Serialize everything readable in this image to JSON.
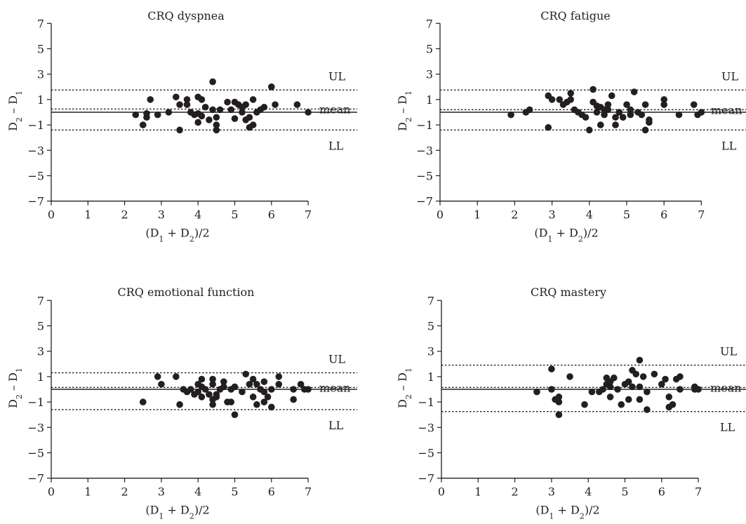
{
  "chart_data": [
    {
      "type": "scatter",
      "title": "CRQ dyspnea",
      "xlabel": "(D1 + D2)/2",
      "ylabel": "D2 – D1",
      "xlim": [
        0,
        7
      ],
      "ylim": [
        -7,
        7
      ],
      "xticks": [
        0,
        1,
        2,
        3,
        4,
        5,
        6,
        7
      ],
      "yticks": [
        -7,
        -5,
        -3,
        -1,
        1,
        3,
        5,
        7
      ],
      "reference_lines": [
        {
          "name": "UL",
          "y": 1.75,
          "style": "dotted"
        },
        {
          "name": "mean",
          "y": 0.25,
          "style": "dotted"
        },
        {
          "name": "mean",
          "y": 0.0,
          "style": "solid",
          "show_label": false
        },
        {
          "name": "LL",
          "y": -1.4,
          "style": "dotted"
        }
      ],
      "points": [
        [
          2.3,
          -0.2
        ],
        [
          2.5,
          -1.0
        ],
        [
          2.6,
          -0.1
        ],
        [
          2.6,
          -0.4
        ],
        [
          2.7,
          1.0
        ],
        [
          2.9,
          -0.2
        ],
        [
          3.2,
          0.0
        ],
        [
          3.4,
          1.2
        ],
        [
          3.5,
          0.6
        ],
        [
          3.5,
          -1.4
        ],
        [
          3.7,
          1.0
        ],
        [
          3.7,
          0.6
        ],
        [
          3.8,
          0.0
        ],
        [
          3.9,
          -0.2
        ],
        [
          4.0,
          1.2
        ],
        [
          4.0,
          -0.1
        ],
        [
          4.0,
          -0.8
        ],
        [
          4.1,
          1.0
        ],
        [
          4.1,
          -0.3
        ],
        [
          4.2,
          0.4
        ],
        [
          4.3,
          -0.6
        ],
        [
          4.4,
          2.4
        ],
        [
          4.4,
          0.2
        ],
        [
          4.5,
          -1.0
        ],
        [
          4.5,
          -1.4
        ],
        [
          4.5,
          -0.4
        ],
        [
          4.6,
          0.2
        ],
        [
          4.8,
          0.8
        ],
        [
          4.9,
          0.2
        ],
        [
          5.0,
          0.8
        ],
        [
          5.0,
          -0.5
        ],
        [
          5.1,
          0.6
        ],
        [
          5.2,
          0.4
        ],
        [
          5.2,
          0.0
        ],
        [
          5.3,
          0.6
        ],
        [
          5.3,
          -0.6
        ],
        [
          5.4,
          -1.2
        ],
        [
          5.4,
          -0.4
        ],
        [
          5.5,
          1.0
        ],
        [
          5.5,
          -1.0
        ],
        [
          5.6,
          0.0
        ],
        [
          5.7,
          0.2
        ],
        [
          5.8,
          0.4
        ],
        [
          6.0,
          2.0
        ],
        [
          6.1,
          0.6
        ],
        [
          6.7,
          0.6
        ],
        [
          7.0,
          0.0
        ]
      ]
    },
    {
      "type": "scatter",
      "title": "CRQ fatigue",
      "xlabel": "(D1 + D2)/2",
      "ylabel": "D2 – D1",
      "xlim": [
        0,
        7
      ],
      "ylim": [
        -7,
        7
      ],
      "xticks": [
        0,
        1,
        2,
        3,
        4,
        5,
        6,
        7
      ],
      "yticks": [
        -7,
        -5,
        -3,
        -1,
        1,
        3,
        5,
        7
      ],
      "reference_lines": [
        {
          "name": "UL",
          "y": 1.75,
          "style": "dotted"
        },
        {
          "name": "mean",
          "y": 0.2,
          "style": "dotted"
        },
        {
          "name": "mean",
          "y": 0.0,
          "style": "solid",
          "show_label": false
        },
        {
          "name": "LL",
          "y": -1.4,
          "style": "dotted"
        }
      ],
      "points": [
        [
          1.9,
          -0.2
        ],
        [
          2.3,
          0.0
        ],
        [
          2.4,
          0.2
        ],
        [
          2.9,
          1.3
        ],
        [
          2.9,
          -1.2
        ],
        [
          3.0,
          1.0
        ],
        [
          3.2,
          1.0
        ],
        [
          3.3,
          0.6
        ],
        [
          3.4,
          0.8
        ],
        [
          3.5,
          1.0
        ],
        [
          3.5,
          1.5
        ],
        [
          3.6,
          0.2
        ],
        [
          3.7,
          0.0
        ],
        [
          3.8,
          -0.2
        ],
        [
          3.9,
          -0.4
        ],
        [
          4.0,
          -1.4
        ],
        [
          4.1,
          1.8
        ],
        [
          4.1,
          0.8
        ],
        [
          4.2,
          0.5
        ],
        [
          4.2,
          0.0
        ],
        [
          4.3,
          -1.0
        ],
        [
          4.3,
          0.4
        ],
        [
          4.4,
          0.2
        ],
        [
          4.4,
          -0.2
        ],
        [
          4.5,
          0.6
        ],
        [
          4.5,
          0.2
        ],
        [
          4.6,
          1.3
        ],
        [
          4.7,
          -0.4
        ],
        [
          4.7,
          -1.0
        ],
        [
          4.8,
          0.0
        ],
        [
          4.9,
          -0.4
        ],
        [
          5.0,
          0.6
        ],
        [
          5.1,
          -0.2
        ],
        [
          5.1,
          0.2
        ],
        [
          5.2,
          1.6
        ],
        [
          5.3,
          0.0
        ],
        [
          5.4,
          -0.2
        ],
        [
          5.5,
          0.6
        ],
        [
          5.5,
          -1.4
        ],
        [
          5.6,
          -0.8
        ],
        [
          5.6,
          -0.6
        ],
        [
          6.0,
          1.0
        ],
        [
          6.0,
          0.6
        ],
        [
          6.4,
          -0.2
        ],
        [
          6.8,
          0.6
        ],
        [
          6.9,
          -0.2
        ],
        [
          7.0,
          0.0
        ]
      ]
    },
    {
      "type": "scatter",
      "title": "CRQ emotional function",
      "xlabel": "(D1 + D2)/2",
      "ylabel": "D2 – D1",
      "xlim": [
        0,
        7
      ],
      "ylim": [
        -7,
        7
      ],
      "xticks": [
        0,
        1,
        2,
        3,
        4,
        5,
        6,
        7
      ],
      "yticks": [
        -7,
        -5,
        -3,
        -1,
        1,
        3,
        5,
        7
      ],
      "reference_lines": [
        {
          "name": "UL",
          "y": 1.3,
          "style": "dotted"
        },
        {
          "name": "mean",
          "y": 0.15,
          "style": "dotted"
        },
        {
          "name": "mean",
          "y": 0.0,
          "style": "solid",
          "show_label": false
        },
        {
          "name": "LL",
          "y": -1.6,
          "style": "dotted"
        }
      ],
      "points": [
        [
          2.5,
          -1.0
        ],
        [
          2.9,
          1.0
        ],
        [
          3.0,
          0.4
        ],
        [
          3.4,
          1.0
        ],
        [
          3.5,
          -1.2
        ],
        [
          3.6,
          0.0
        ],
        [
          3.7,
          -0.2
        ],
        [
          3.8,
          0.0
        ],
        [
          3.9,
          -0.4
        ],
        [
          4.0,
          0.4
        ],
        [
          4.0,
          -0.2
        ],
        [
          4.1,
          0.2
        ],
        [
          4.1,
          0.8
        ],
        [
          4.1,
          -0.6
        ],
        [
          4.2,
          0.0
        ],
        [
          4.3,
          -0.4
        ],
        [
          4.4,
          -0.8
        ],
        [
          4.4,
          0.4
        ],
        [
          4.4,
          -1.2
        ],
        [
          4.4,
          0.8
        ],
        [
          4.5,
          -0.4
        ],
        [
          4.5,
          -0.6
        ],
        [
          4.6,
          0.0
        ],
        [
          4.7,
          0.6
        ],
        [
          4.7,
          0.2
        ],
        [
          4.8,
          -1.0
        ],
        [
          4.9,
          0.0
        ],
        [
          4.9,
          -1.0
        ],
        [
          5.0,
          -2.0
        ],
        [
          5.0,
          0.2
        ],
        [
          5.2,
          -0.2
        ],
        [
          5.3,
          1.2
        ],
        [
          5.4,
          0.4
        ],
        [
          5.5,
          0.8
        ],
        [
          5.5,
          -0.6
        ],
        [
          5.6,
          -1.2
        ],
        [
          5.6,
          0.4
        ],
        [
          5.7,
          0.0
        ],
        [
          5.8,
          -0.2
        ],
        [
          5.8,
          0.6
        ],
        [
          5.8,
          -1.0
        ],
        [
          5.9,
          -0.6
        ],
        [
          6.0,
          0.0
        ],
        [
          6.0,
          -1.4
        ],
        [
          6.2,
          1.0
        ],
        [
          6.2,
          0.4
        ],
        [
          6.6,
          0.0
        ],
        [
          6.6,
          -0.8
        ],
        [
          6.8,
          0.4
        ],
        [
          6.9,
          0.0
        ],
        [
          7.0,
          0.0
        ]
      ]
    },
    {
      "type": "scatter",
      "title": "CRQ mastery",
      "xlabel": "(D1 + D2)/2",
      "ylabel": "D2 – D1",
      "xlim": [
        0,
        7
      ],
      "ylim": [
        -7,
        7
      ],
      "xticks": [
        0,
        1,
        2,
        3,
        4,
        5,
        6,
        7
      ],
      "yticks": [
        -7,
        -5,
        -3,
        -1,
        1,
        3,
        5,
        7
      ],
      "reference_lines": [
        {
          "name": "UL",
          "y": 1.9,
          "style": "dotted"
        },
        {
          "name": "mean",
          "y": 0.15,
          "style": "dotted"
        },
        {
          "name": "mean",
          "y": 0.0,
          "style": "solid",
          "show_label": false
        },
        {
          "name": "LL",
          "y": -1.75,
          "style": "dotted"
        }
      ],
      "points": [
        [
          2.6,
          -0.2
        ],
        [
          3.0,
          1.6
        ],
        [
          3.0,
          0.0
        ],
        [
          3.1,
          -0.8
        ],
        [
          3.2,
          -1.0
        ],
        [
          3.2,
          -0.6
        ],
        [
          3.2,
          -2.0
        ],
        [
          3.5,
          1.0
        ],
        [
          3.9,
          -1.2
        ],
        [
          4.1,
          -0.2
        ],
        [
          4.3,
          -0.2
        ],
        [
          4.4,
          0.0
        ],
        [
          4.5,
          0.9
        ],
        [
          4.5,
          0.4
        ],
        [
          4.6,
          0.2
        ],
        [
          4.6,
          -0.6
        ],
        [
          4.6,
          0.6
        ],
        [
          4.7,
          0.9
        ],
        [
          4.8,
          0.0
        ],
        [
          4.9,
          -1.2
        ],
        [
          5.0,
          0.4
        ],
        [
          5.1,
          0.6
        ],
        [
          5.1,
          -0.8
        ],
        [
          5.2,
          0.2
        ],
        [
          5.2,
          1.5
        ],
        [
          5.3,
          1.2
        ],
        [
          5.4,
          2.3
        ],
        [
          5.4,
          0.2
        ],
        [
          5.4,
          -0.8
        ],
        [
          5.5,
          1.0
        ],
        [
          5.6,
          -0.2
        ],
        [
          5.6,
          -1.6
        ],
        [
          5.8,
          1.2
        ],
        [
          6.0,
          0.4
        ],
        [
          6.1,
          0.8
        ],
        [
          6.2,
          -0.6
        ],
        [
          6.2,
          -1.4
        ],
        [
          6.3,
          -1.2
        ],
        [
          6.4,
          0.8
        ],
        [
          6.5,
          0.0
        ],
        [
          6.5,
          1.0
        ],
        [
          6.9,
          0.0
        ],
        [
          6.9,
          0.2
        ],
        [
          7.0,
          0.0
        ]
      ]
    }
  ]
}
